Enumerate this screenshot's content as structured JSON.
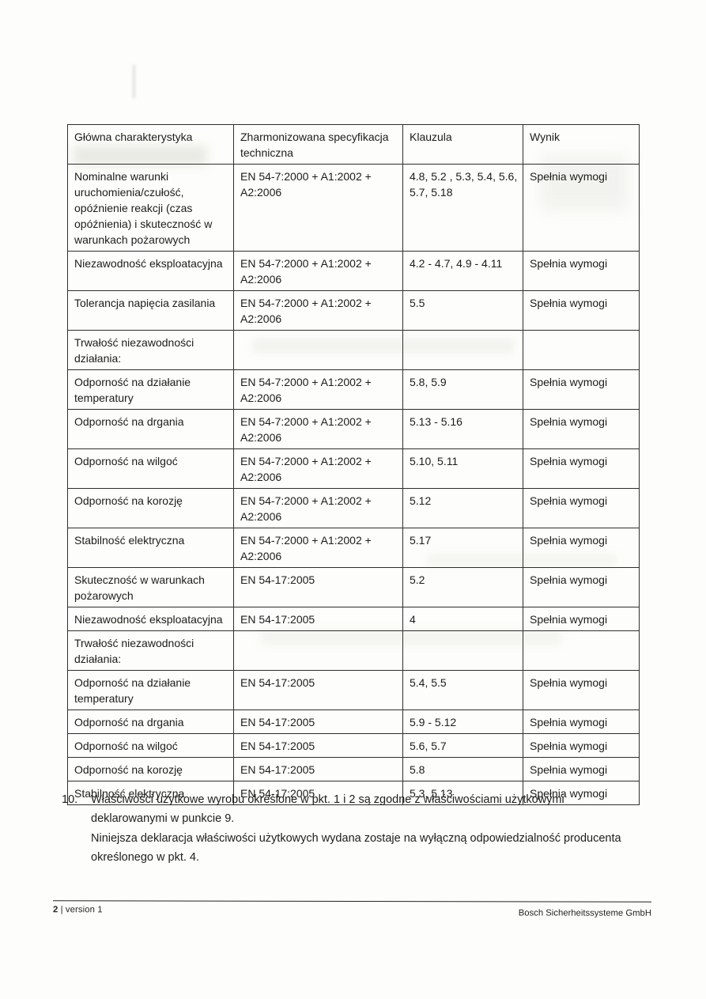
{
  "colors": {
    "paper": "#fdfdfb",
    "ink": "#1d1d1b",
    "table_border": "#2e2e2c"
  },
  "table": {
    "headers": [
      "Główna charakterystyka",
      "Zharmonizowana specyfikacja techniczna",
      "Klauzula",
      "Wynik"
    ],
    "rows": [
      {
        "characteristic": "Nominalne warunki uruchomienia/czułość, opóźnienie reakcji (czas opóźnienia) i skuteczność w warunkach pożarowych",
        "spec": "EN 54-7:2000 + A1:2002 + A2:2006",
        "clause": "4.8, 5.2 , 5.3, 5.4, 5.6, 5.7, 5.18",
        "result": "Spełnia wymogi"
      },
      {
        "characteristic": "Niezawodność eksploatacyjna",
        "spec": "EN 54-7:2000 + A1:2002 + A2:2006",
        "clause": "4.2 - 4.7, 4.9 - 4.11",
        "result": "Spełnia wymogi"
      },
      {
        "characteristic": "Tolerancja napięcia zasilania",
        "spec": "EN 54-7:2000 + A1:2002 + A2:2006",
        "clause": "5.5",
        "result": "Spełnia wymogi"
      },
      {
        "characteristic": "Trwałość niezawodności działania:",
        "spec": "",
        "clause": "",
        "result": ""
      },
      {
        "characteristic": "Odporność na działanie temperatury",
        "spec": "EN 54-7:2000 + A1:2002 + A2:2006",
        "clause": "5.8, 5.9",
        "result": "Spełnia wymogi"
      },
      {
        "characteristic": "Odporność na drgania",
        "spec": "EN 54-7:2000 + A1:2002 + A2:2006",
        "clause": "5.13 - 5.16",
        "result": "Spełnia wymogi"
      },
      {
        "characteristic": "Odporność na wilgoć",
        "spec": "EN 54-7:2000 + A1:2002 + A2:2006",
        "clause": "5.10, 5.11",
        "result": "Spełnia wymogi"
      },
      {
        "characteristic": "Odporność na korozję",
        "spec": "EN 54-7:2000 + A1:2002 + A2:2006",
        "clause": "5.12",
        "result": "Spełnia wymogi"
      },
      {
        "characteristic": "Stabilność elektryczna",
        "spec": "EN 54-7:2000 + A1:2002 + A2:2006",
        "clause": "5.17",
        "result": "Spełnia wymogi"
      },
      {
        "characteristic": "Skuteczność w warunkach pożarowych",
        "spec": "EN 54-17:2005",
        "clause": "5.2",
        "result": "Spełnia wymogi"
      },
      {
        "characteristic": "Niezawodność eksploatacyjna",
        "spec": "EN 54-17:2005",
        "clause": "4",
        "result": "Spełnia wymogi"
      },
      {
        "characteristic": "Trwałość niezawodności działania:",
        "spec": "",
        "clause": "",
        "result": ""
      },
      {
        "characteristic": "Odporność na działanie temperatury",
        "spec": "EN 54-17:2005",
        "clause": "5.4, 5.5",
        "result": "Spełnia wymogi"
      },
      {
        "characteristic": "Odporność na drgania",
        "spec": "EN 54-17:2005",
        "clause": "5.9 - 5.12",
        "result": "Spełnia wymogi"
      },
      {
        "characteristic": "Odporność na wilgoć",
        "spec": "EN 54-17:2005",
        "clause": "5.6, 5.7",
        "result": "Spełnia wymogi"
      },
      {
        "characteristic": "Odporność na korozję",
        "spec": "EN 54-17:2005",
        "clause": "5.8",
        "result": "Spełnia wymogi"
      },
      {
        "characteristic": "Stabilność elektryczna",
        "spec": "EN 54-17:2005",
        "clause": "5.3, 5.13",
        "result": "Spełnia wymogi"
      }
    ]
  },
  "notes": {
    "number": "10.",
    "item1": "Właściwości użytkowe wyrobu określone w pkt. 1 i 2 są zgodne z właściwościami użytkowymi\ndeklarowanymi w punkcie 9.",
    "item2": "Niniejsza deklaracja właściwości użytkowych wydana zostaje na wyłączną odpowiedzialność producenta\nokreślonego w pkt. 4."
  },
  "footer": {
    "page_number": "2",
    "version_text": "| version 1",
    "company": "Bosch Sicherheitssysteme GmbH"
  }
}
